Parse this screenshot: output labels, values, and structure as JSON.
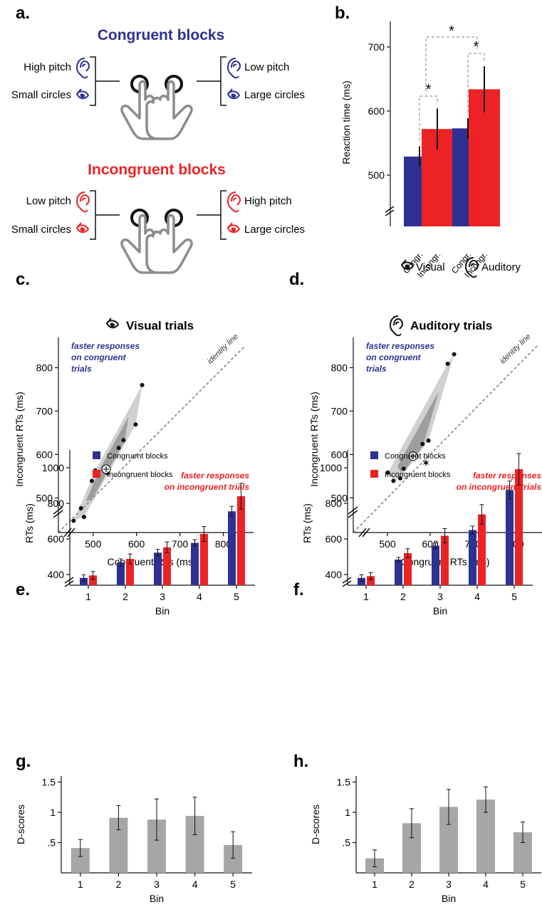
{
  "panels": {
    "a": "a.",
    "b": "b.",
    "c": "c.",
    "d": "d.",
    "e": "e.",
    "f": "f.",
    "g": "g.",
    "h": "h."
  },
  "colors": {
    "congruent": "#2e3192",
    "incongruent": "#ed2224",
    "gray": "#a6a6a6",
    "dark": "#111111"
  },
  "panel_a": {
    "congruent_title": "Congruent blocks",
    "incongruent_title": "Incongruent blocks",
    "congruent_left": [
      "High pitch",
      "Small circles"
    ],
    "congruent_right": [
      "Low pitch",
      "Large circles"
    ],
    "incongruent_left": [
      "Low pitch",
      "Small circles"
    ],
    "incongruent_right": [
      "High pitch",
      "Large circles"
    ],
    "icons": [
      "ear-icon",
      "eye-icon",
      "hand-press-icon"
    ]
  },
  "chart_data": [
    {
      "id": "b",
      "type": "bar",
      "ylabel": "Reaction time (ms)",
      "yticks": [
        500,
        600,
        700
      ],
      "ylim": [
        420,
        740
      ],
      "categories": [
        "Congr.",
        "Incongr.",
        "Congr.",
        "Incongr."
      ],
      "groups": [
        "Visual",
        "Auditory"
      ],
      "values": [
        529,
        572,
        573,
        634
      ],
      "errors": [
        16,
        32,
        16,
        36
      ],
      "colors": [
        "congruent",
        "incongruent",
        "congruent",
        "incongruent"
      ],
      "significance": "*"
    },
    {
      "id": "c",
      "type": "scatter",
      "title": "Visual trials",
      "xlabel": "Congruent RTs (ms)",
      "ylabel": "Incongruent RTs (ms)",
      "ticks": [
        500,
        600,
        700,
        800
      ],
      "xticklabels": [
        "500",
        "600",
        "700",
        "800"
      ],
      "yticklabels": [
        "500",
        "600",
        "700",
        "800"
      ],
      "xlim": [
        420,
        850
      ],
      "ylim": [
        420,
        850
      ],
      "points": [
        [
          455,
          447
        ],
        [
          472,
          476
        ],
        [
          479,
          456
        ],
        [
          497,
          539
        ],
        [
          505,
          563
        ],
        [
          533,
          557
        ],
        [
          559,
          615
        ],
        [
          570,
          633
        ],
        [
          598,
          669
        ],
        [
          613,
          760
        ]
      ],
      "mean": [
        530,
        566
      ],
      "annotation_top": [
        "faster responses",
        "on congruent",
        "trials"
      ],
      "annotation_bottom": [
        "faster responses",
        "on incongruent trials"
      ],
      "identity_label": "identity line"
    },
    {
      "id": "d",
      "type": "scatter",
      "title": "Auditory trials",
      "xlabel": "Congruent RTs (ms)",
      "ylabel": "Incongruent RTs (ms)",
      "ticks": [
        500,
        600,
        700,
        800
      ],
      "xticklabels": [
        "500",
        "600",
        "700",
        "800"
      ],
      "yticklabels": [
        "500",
        "600",
        "700",
        "800"
      ],
      "xlim": [
        420,
        850
      ],
      "ylim": [
        420,
        850
      ],
      "points": [
        [
          501,
          558
        ],
        [
          514,
          539
        ],
        [
          530,
          545
        ],
        [
          538,
          567
        ],
        [
          582,
          624
        ],
        [
          596,
          632
        ],
        [
          641,
          809
        ],
        [
          656,
          831
        ]
      ],
      "outlier": [
        590,
        580
      ],
      "mean": [
        560,
        596
      ],
      "annotation_top": [
        "faster responses",
        "on congruent",
        "trials"
      ],
      "annotation_bottom": [
        "faster responses",
        "on incongruent trials"
      ],
      "identity_label": "identity line"
    },
    {
      "id": "e",
      "type": "bar",
      "xlabel": "Bin",
      "ylabel": "RTs (ms)",
      "categories": [
        "1",
        "2",
        "3",
        "4",
        "5"
      ],
      "yticks": [
        400,
        600,
        800,
        1000
      ],
      "ylim": [
        340,
        1100
      ],
      "series": [
        {
          "name": "Congruent blocks",
          "values": [
            381,
            468,
            523,
            578,
            755
          ],
          "errors": [
            18,
            20,
            18,
            18,
            28
          ]
        },
        {
          "name": "Incongruent blocks",
          "values": [
            395,
            488,
            553,
            628,
            840
          ],
          "errors": [
            22,
            28,
            30,
            42,
            72
          ]
        }
      ]
    },
    {
      "id": "f",
      "type": "bar",
      "xlabel": "Bin",
      "ylabel": "RTs (ms)",
      "categories": [
        "1",
        "2",
        "3",
        "4",
        "5"
      ],
      "yticks": [
        400,
        600,
        800,
        1000
      ],
      "ylim": [
        340,
        1100
      ],
      "series": [
        {
          "name": "Congruent blocks",
          "values": [
            381,
            484,
            562,
            650,
            875
          ],
          "errors": [
            18,
            12,
            15,
            22,
            50
          ]
        },
        {
          "name": "Incongruent blocks",
          "values": [
            391,
            520,
            618,
            738,
            992
          ],
          "errors": [
            20,
            25,
            40,
            55,
            88
          ]
        }
      ]
    },
    {
      "id": "g",
      "type": "bar",
      "xlabel": "Bin",
      "ylabel": "D-scores",
      "categories": [
        "1",
        "2",
        "3",
        "4",
        "5"
      ],
      "yticks": [
        0.5,
        1,
        1.5
      ],
      "yticklabels": [
        ".5",
        "1",
        "1.5"
      ],
      "ylim": [
        0,
        1.6
      ],
      "values": [
        0.41,
        0.91,
        0.88,
        0.94,
        0.46
      ],
      "errors": [
        0.14,
        0.2,
        0.34,
        0.31,
        0.22
      ]
    },
    {
      "id": "h",
      "type": "bar",
      "xlabel": "Bin",
      "ylabel": "D-scores",
      "categories": [
        "1",
        "2",
        "3",
        "4",
        "5"
      ],
      "yticks": [
        0.5,
        1,
        1.5
      ],
      "yticklabels": [
        ".5",
        "1",
        "1.5"
      ],
      "ylim": [
        0,
        1.6
      ],
      "values": [
        0.24,
        0.82,
        1.09,
        1.21,
        0.67
      ],
      "errors": [
        0.14,
        0.24,
        0.29,
        0.21,
        0.17
      ]
    }
  ]
}
